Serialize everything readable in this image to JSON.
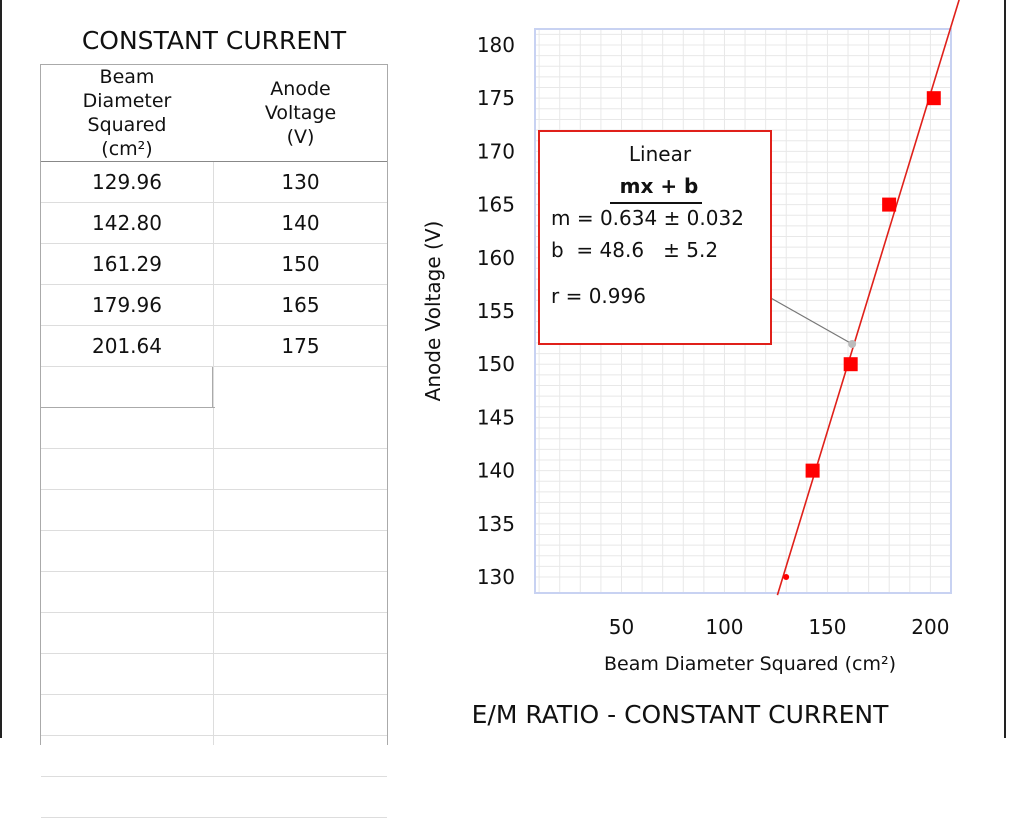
{
  "table": {
    "title": "CONSTANT CURRENT",
    "headers": [
      "Beam\nDiameter\nSquared\n(cm²)",
      "Anode\nVoltage\n(V)"
    ],
    "rows": [
      [
        "129.96",
        "130"
      ],
      [
        "142.80",
        "140"
      ],
      [
        "161.29",
        "150"
      ],
      [
        "179.96",
        "165"
      ],
      [
        "201.64",
        "175"
      ]
    ]
  },
  "fit": {
    "type": "Linear",
    "equation": "mx + b",
    "m_line": "m = 0.634 ± 0.032",
    "b_line": "b  = 48.6   ± 5.2",
    "r_line": "r = 0.996"
  },
  "colors": {
    "marker": "#ff0000",
    "fit_line": "#e0201a",
    "plot_border": "#c8d2f2",
    "grid": "#e8e8e8"
  },
  "chart_data": {
    "type": "scatter",
    "title": "E/M RATIO - CONSTANT CURRENT",
    "xlabel": "Beam Diameter Squared (cm²)",
    "ylabel": "Anode Voltage (V)",
    "xlim": [
      8,
      210
    ],
    "ylim": [
      128.5,
      181.5
    ],
    "xticks": [
      50,
      100,
      150,
      200
    ],
    "yticks": [
      130,
      135,
      140,
      145,
      150,
      155,
      160,
      165,
      170,
      175,
      180
    ],
    "grid": true,
    "series": [
      {
        "x": [
          129.96,
          142.8,
          161.29,
          179.96,
          201.64
        ],
        "y": [
          130,
          140,
          150,
          165,
          175
        ]
      }
    ],
    "fit_line": {
      "m": 0.634,
      "b": 48.6
    },
    "annotation_point": {
      "x": 162,
      "y": 151.9
    }
  }
}
